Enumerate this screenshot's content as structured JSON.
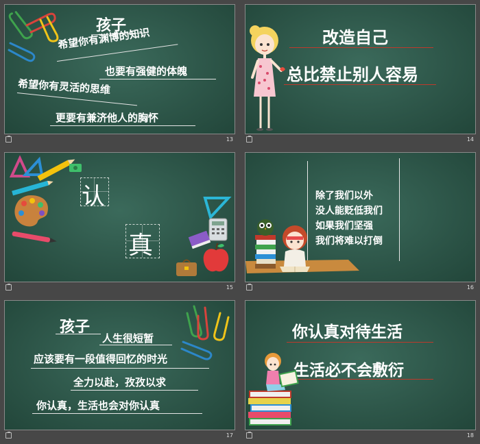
{
  "slides": [
    {
      "number": "13",
      "lines": [
        "孩子",
        "希望你有渊博的知识",
        "也要有强健的体魄",
        "希望你有灵活的思维",
        "更要有兼济他人的胸怀"
      ]
    },
    {
      "number": "14",
      "lines": [
        "改造自己",
        "总比禁止别人容易"
      ]
    },
    {
      "number": "15",
      "lines": [
        "认",
        "真"
      ]
    },
    {
      "number": "16",
      "lines": [
        "除了我们以外",
        "没人能贬低我们",
        "如果我们坚强",
        "我们将难以打倒"
      ]
    },
    {
      "number": "17",
      "lines": [
        "孩子",
        "人生很短暂",
        "应该要有一段值得回忆的时光",
        "全力以赴，孜孜以求",
        "你认真，生活也会对你认真"
      ]
    },
    {
      "number": "18",
      "lines": [
        "你认真对待生活",
        "生活必不会敷衍"
      ]
    }
  ],
  "colors": {
    "board": "#2c5447",
    "background": "#474747",
    "chalk": "#ffffff",
    "accent_line": "#c0392b"
  },
  "icons": [
    "paperclip-icon",
    "triangle-ruler-icon",
    "pencil-icon",
    "sharpener-icon",
    "palette-icon",
    "pen-icon",
    "calculator-icon",
    "book-icon",
    "apple-icon",
    "bag-icon",
    "girl-illustration",
    "owl-illustration",
    "books-illustration",
    "reading-girl-illustration",
    "slide-icon"
  ]
}
